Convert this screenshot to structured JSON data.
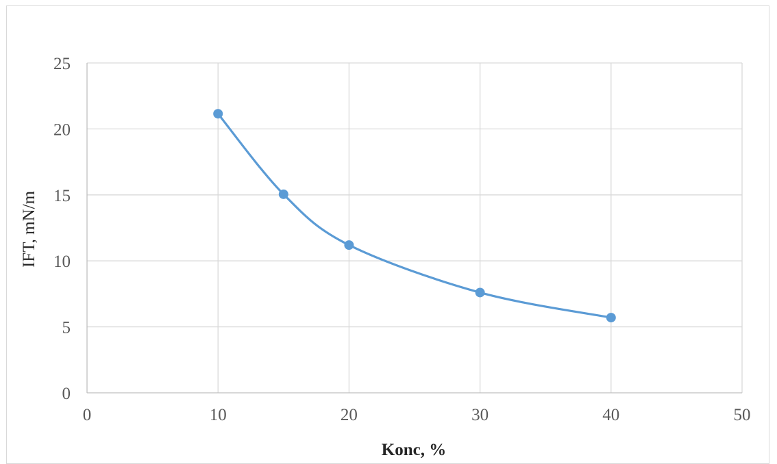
{
  "chart_data": {
    "type": "scatter",
    "title": "",
    "xlabel": "Konc, %",
    "ylabel": "IFT, mN/m",
    "xlim": [
      0,
      50
    ],
    "ylim": [
      0,
      25
    ],
    "x_ticks": [
      "0",
      "10",
      "20",
      "30",
      "40",
      "50"
    ],
    "y_ticks": [
      "0",
      "5",
      "10",
      "15",
      "20",
      "25"
    ],
    "grid": true,
    "smooth_line": true,
    "legend": "none",
    "series": [
      {
        "color": "#5b9bd5",
        "x": [
          10,
          15,
          20,
          30,
          40
        ],
        "y": [
          21.15,
          15.05,
          11.2,
          7.6,
          5.7
        ]
      }
    ]
  }
}
